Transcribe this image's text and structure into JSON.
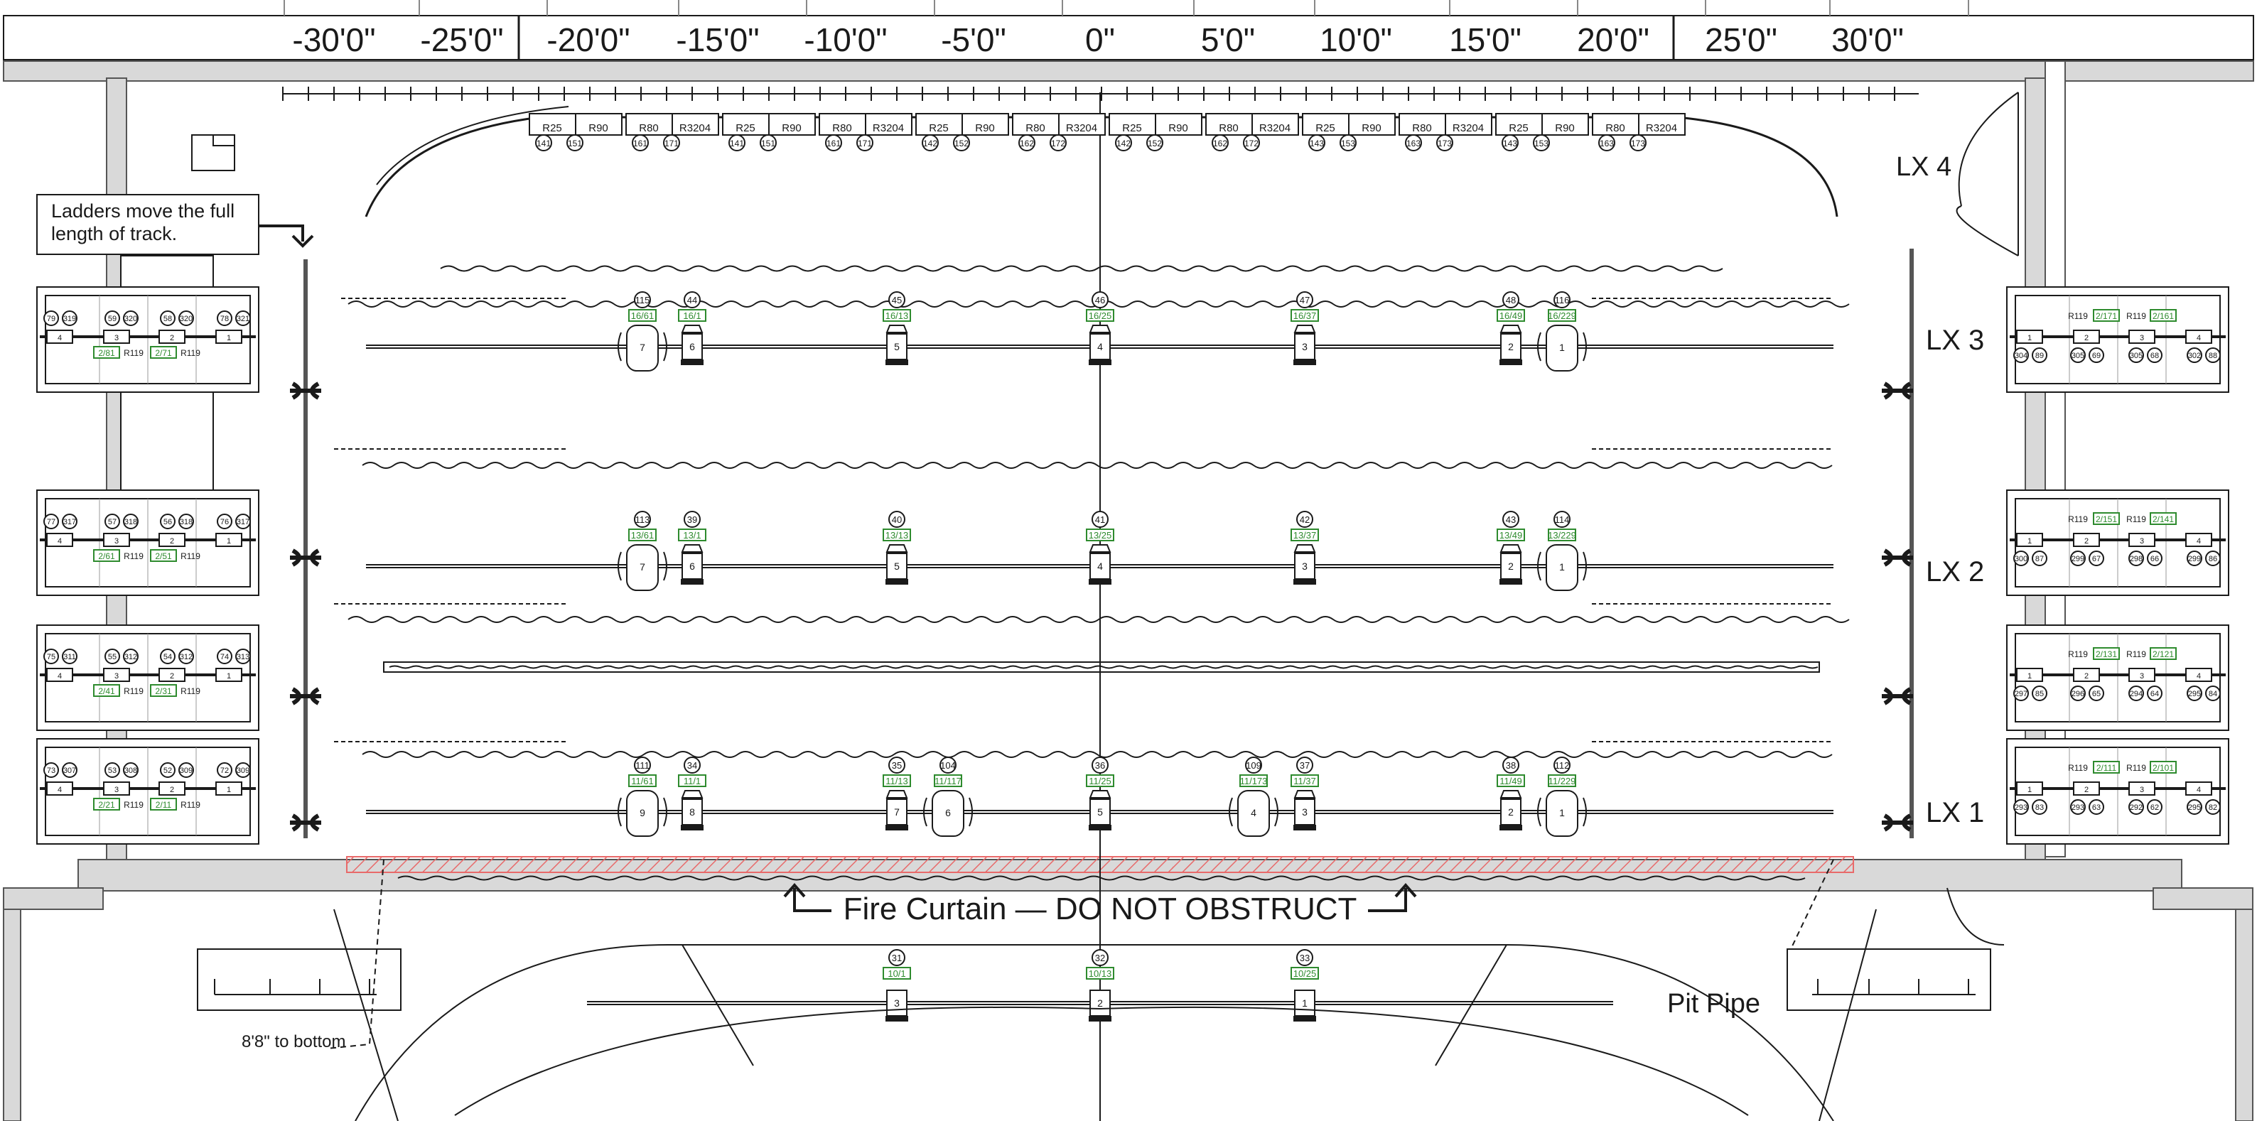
{
  "ruler": {
    "labels": [
      "-30'0\"",
      "-25'0\"",
      "-20'0\"",
      "-15'0\"",
      "-10'0\"",
      "-5'0\"",
      "0\"",
      "5'0\"",
      "10'0\"",
      "15'0\"",
      "20'0\"",
      "25'0\"",
      "30'0\""
    ]
  },
  "electrics": [
    {
      "name": "LX 4",
      "color_pairs": [
        {
          "top": "R25",
          "ch": [
            "141",
            "151"
          ],
          "bot": "R90"
        },
        {
          "top": "R80",
          "ch": [
            "161",
            "171"
          ],
          "bot": "R3204"
        },
        {
          "top": "R25",
          "ch": [
            "141",
            "151"
          ],
          "bot": "R90"
        },
        {
          "top": "R80",
          "ch": [
            "161",
            "171"
          ],
          "bot": "R3204"
        },
        {
          "top": "R25",
          "ch": [
            "142",
            "152"
          ],
          "bot": "R90"
        },
        {
          "top": "R80",
          "ch": [
            "162",
            "172"
          ],
          "bot": "R3204"
        },
        {
          "top": "R25",
          "ch": [
            "142",
            "152"
          ],
          "bot": "R90"
        },
        {
          "top": "R80",
          "ch": [
            "162",
            "172"
          ],
          "bot": "R3204"
        },
        {
          "top": "R25",
          "ch": [
            "143",
            "153"
          ],
          "bot": "R90"
        },
        {
          "top": "R80",
          "ch": [
            "163",
            "173"
          ],
          "bot": "R3204"
        },
        {
          "top": "R25",
          "ch": [
            "143",
            "153"
          ],
          "bot": "R90"
        },
        {
          "top": "R80",
          "ch": [
            "163",
            "173"
          ],
          "bot": "R3204"
        }
      ]
    },
    {
      "name": "LX 3",
      "units": [
        {
          "ch": "115",
          "addr": "16/61",
          "unit": "7",
          "big": true
        },
        {
          "ch": "44",
          "addr": "16/1",
          "unit": "6"
        },
        {
          "ch": "45",
          "addr": "16/13",
          "unit": "5"
        },
        {
          "ch": "46",
          "addr": "16/25",
          "unit": "4"
        },
        {
          "ch": "47",
          "addr": "16/37",
          "unit": "3"
        },
        {
          "ch": "48",
          "addr": "16/49",
          "unit": "2"
        },
        {
          "ch": "116",
          "addr": "16/229",
          "unit": "1",
          "big": true
        }
      ]
    },
    {
      "name": "LX 2",
      "units": [
        {
          "ch": "113",
          "addr": "13/61",
          "unit": "7",
          "big": true
        },
        {
          "ch": "39",
          "addr": "13/1",
          "unit": "6"
        },
        {
          "ch": "40",
          "addr": "13/13",
          "unit": "5"
        },
        {
          "ch": "41",
          "addr": "13/25",
          "unit": "4"
        },
        {
          "ch": "42",
          "addr": "13/37",
          "unit": "3"
        },
        {
          "ch": "43",
          "addr": "13/49",
          "unit": "2"
        },
        {
          "ch": "114",
          "addr": "13/229",
          "unit": "1",
          "big": true
        }
      ]
    },
    {
      "name": "LX 1",
      "units": [
        {
          "ch": "111",
          "addr": "11/61",
          "unit": "9",
          "big": true
        },
        {
          "ch": "34",
          "addr": "11/1",
          "unit": "8"
        },
        {
          "ch": "35",
          "addr": "11/13",
          "unit": "7"
        },
        {
          "ch": "104",
          "addr": "11/117",
          "unit": "6",
          "big": true
        },
        {
          "ch": "36",
          "addr": "11/25",
          "unit": "5"
        },
        {
          "ch": "109",
          "addr": "11/173",
          "unit": "4",
          "big": true
        },
        {
          "ch": "37",
          "addr": "11/37",
          "unit": "3"
        },
        {
          "ch": "38",
          "addr": "11/49",
          "unit": "2"
        },
        {
          "ch": "112",
          "addr": "11/229",
          "unit": "1",
          "big": true
        }
      ]
    }
  ],
  "front_pipe": {
    "units": [
      {
        "ch": "31",
        "addr": "10/1",
        "unit": "3"
      },
      {
        "ch": "32",
        "addr": "10/13",
        "unit": "2"
      },
      {
        "ch": "33",
        "addr": "10/25",
        "unit": "1"
      }
    ]
  },
  "left_booms": [
    {
      "ch": [
        "79",
        "319",
        "59",
        "320",
        "58",
        "320",
        "78",
        "321"
      ],
      "addr": [
        "2/81",
        "2/71"
      ],
      "gel": [
        "R119",
        "R119"
      ],
      "unit": [
        "4",
        "3",
        "2",
        "1"
      ]
    },
    {
      "ch": [
        "77",
        "317",
        "57",
        "318",
        "56",
        "318",
        "76",
        "317"
      ],
      "addr": [
        "2/61",
        "2/51"
      ],
      "gel": [
        "R119",
        "R119"
      ],
      "unit": [
        "4",
        "3",
        "2",
        "1"
      ]
    },
    {
      "ch": [
        "75",
        "311",
        "55",
        "312",
        "54",
        "312",
        "74",
        "313"
      ],
      "addr": [
        "2/41",
        "2/31"
      ],
      "gel": [
        "R119",
        "R119"
      ],
      "unit": [
        "4",
        "3",
        "2",
        "1"
      ]
    },
    {
      "ch": [
        "73",
        "307",
        "53",
        "308",
        "52",
        "309",
        "72",
        "309"
      ],
      "addr": [
        "2/21",
        "2/11"
      ],
      "gel": [
        "R119",
        "R119"
      ],
      "unit": [
        "4",
        "3",
        "2",
        "1"
      ]
    }
  ],
  "right_booms": [
    {
      "gel": [
        "R119",
        "R119"
      ],
      "addr": [
        "2/171",
        "2/161"
      ],
      "ch": [
        "304",
        "89",
        "305",
        "69",
        "305",
        "68",
        "302",
        "88"
      ],
      "unit": [
        "1",
        "2",
        "3",
        "4"
      ]
    },
    {
      "gel": [
        "R119",
        "R119"
      ],
      "addr": [
        "2/151",
        "2/141"
      ],
      "ch": [
        "300",
        "87",
        "299",
        "67",
        "298",
        "66",
        "299",
        "86"
      ],
      "unit": [
        "1",
        "2",
        "3",
        "4"
      ]
    },
    {
      "gel": [
        "R119",
        "R119"
      ],
      "addr": [
        "2/131",
        "2/121"
      ],
      "ch": [
        "297",
        "85",
        "296",
        "65",
        "294",
        "64",
        "295",
        "84"
      ],
      "unit": [
        "1",
        "2",
        "3",
        "4"
      ]
    },
    {
      "gel": [
        "R119",
        "R119"
      ],
      "addr": [
        "2/111",
        "2/101"
      ],
      "ch": [
        "293",
        "83",
        "293",
        "63",
        "292",
        "62",
        "295",
        "82"
      ],
      "unit": [
        "1",
        "2",
        "3",
        "4"
      ]
    }
  ],
  "notes": {
    "ladders": "Ladders move the full length of track.",
    "fire_curtain": "Fire Curtain — DO NOT OBSTRUCT",
    "pit_pipe": "Pit Pipe",
    "bottom_height": "8'8\" to bottom"
  },
  "colors": {
    "line": "#1a1a1a",
    "wall": "#d9d9d9",
    "address": "#2e8b2e",
    "hazard": "#e86a6a"
  }
}
